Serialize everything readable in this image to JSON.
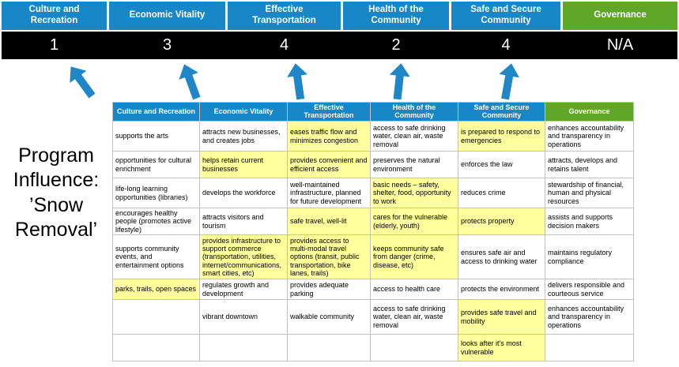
{
  "title": "Program Influence: ’Snow Removal’",
  "colors": {
    "pillar-blue": "#1787c8",
    "governance-green": "#5fa728",
    "score-bar": "#000000",
    "highlight": "#ffff9e",
    "arrow": "#1f86c8",
    "grid-line": "#c3c3c3"
  },
  "scoreboard": {
    "columns": [
      {
        "label": "Culture and Recreation",
        "score": "1",
        "theme": "blue"
      },
      {
        "label": "Economic Vitality",
        "score": "3",
        "theme": "blue"
      },
      {
        "label": "Effective Transportation",
        "score": "4",
        "theme": "blue"
      },
      {
        "label": "Health of the Community",
        "score": "2",
        "theme": "blue"
      },
      {
        "label": "Safe and Secure Community",
        "score": "4",
        "theme": "blue"
      },
      {
        "label": "Governance",
        "score": "N/A",
        "theme": "green"
      }
    ]
  },
  "table": {
    "headers": [
      {
        "label": "Culture and Recreation",
        "theme": "blue"
      },
      {
        "label": "Economic Vitality",
        "theme": "blue"
      },
      {
        "label": "Effective Transportation",
        "theme": "blue"
      },
      {
        "label": "Health of the Community",
        "theme": "blue"
      },
      {
        "label": "Safe and Secure Community",
        "theme": "blue"
      },
      {
        "label": "Governance",
        "theme": "green"
      }
    ],
    "rows": [
      [
        {
          "text": "supports the arts",
          "highlight": false
        },
        {
          "text": "attracts new businesses, and creates jobs",
          "highlight": false
        },
        {
          "text": "eases traffic flow and minimizes congestion",
          "highlight": true
        },
        {
          "text": "access to safe drinking water, clean air, waste removal",
          "highlight": false
        },
        {
          "text": "is prepared to respond to emergencies",
          "highlight": true
        },
        {
          "text": "enhances accountability and transparency in operations",
          "highlight": false
        }
      ],
      [
        {
          "text": "opportunities for cultural enrichment",
          "highlight": false
        },
        {
          "text": "helps retain current businesses",
          "highlight": true
        },
        {
          "text": "provides convenient and efficient access",
          "highlight": true
        },
        {
          "text": "preserves the natural environment",
          "highlight": false
        },
        {
          "text": "enforces the law",
          "highlight": false
        },
        {
          "text": "attracts, develops and retains talent",
          "highlight": false
        }
      ],
      [
        {
          "text": "life-long learning opportunities (libraries)",
          "highlight": false
        },
        {
          "text": "develops the workforce",
          "highlight": false
        },
        {
          "text": "well-maintained infrastructure, planned for future development",
          "highlight": false
        },
        {
          "text": "basic needs – safety, shelter, food, opportunity to work",
          "highlight": true
        },
        {
          "text": "reduces crime",
          "highlight": false
        },
        {
          "text": "stewardship of financial, human and physical resources",
          "highlight": false
        }
      ],
      [
        {
          "text": "encourages healthy people (promotes active lifestyle)",
          "highlight": false
        },
        {
          "text": "attracts visitors and tourism",
          "highlight": false
        },
        {
          "text": "safe travel, well-lit",
          "highlight": true
        },
        {
          "text": "cares for the vulnerable (elderly, youth)",
          "highlight": true
        },
        {
          "text": "protects property",
          "highlight": true
        },
        {
          "text": "assists and supports decision makers",
          "highlight": false
        }
      ],
      [
        {
          "text": "supports community events, and entertainment options",
          "highlight": false
        },
        {
          "text": "provides infrastructure to support commerce (transportation, utilities, internet/communications, smart cities, etc)",
          "highlight": true
        },
        {
          "text": "provides access to multi-modal travel options (transit, public transportation, bike lanes, trails)",
          "highlight": true
        },
        {
          "text": "keeps community safe from danger (crime, disease, etc)",
          "highlight": true
        },
        {
          "text": "ensures safe air and access to drinking water",
          "highlight": false
        },
        {
          "text": "maintains regulatory compliance",
          "highlight": false
        }
      ],
      [
        {
          "text": "parks, trails, open spaces",
          "highlight": true
        },
        {
          "text": "regulates growth and development",
          "highlight": false
        },
        {
          "text": "provides adequate parking",
          "highlight": false
        },
        {
          "text": "access to health care",
          "highlight": false
        },
        {
          "text": "protects the environment",
          "highlight": false
        },
        {
          "text": "delivers responsible and courteous service",
          "highlight": false
        }
      ],
      [
        {
          "text": "",
          "highlight": false
        },
        {
          "text": "vibrant downtown",
          "highlight": false
        },
        {
          "text": "walkable community",
          "highlight": false
        },
        {
          "text": "access to safe drinking water, clean air, waste removal",
          "highlight": false
        },
        {
          "text": "provides safe travel and mobility",
          "highlight": true
        },
        {
          "text": "enhances accountability and transparency in operations",
          "highlight": false
        }
      ],
      [
        {
          "text": "",
          "highlight": false
        },
        {
          "text": "",
          "highlight": false
        },
        {
          "text": "",
          "highlight": false
        },
        {
          "text": "",
          "highlight": false
        },
        {
          "text": "looks after it's most vulnerable",
          "highlight": true
        },
        {
          "text": "",
          "highlight": false
        }
      ]
    ]
  }
}
